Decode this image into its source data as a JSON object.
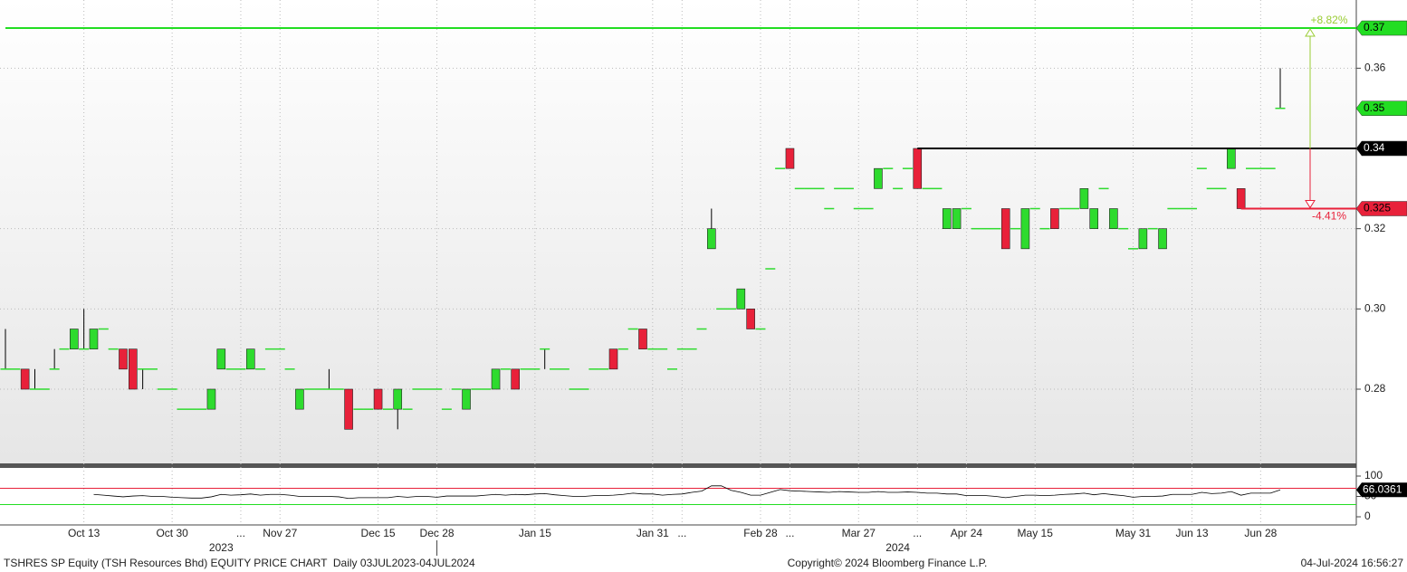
{
  "chart_data": {
    "type": "candlestick",
    "up_color": "#2edb2e",
    "down_color": "#e8213a",
    "categories": [
      null,
      null,
      null,
      null,
      null,
      null,
      null,
      null,
      "Oct 13",
      null,
      null,
      null,
      null,
      null,
      null,
      null,
      null,
      "Oct 30",
      null,
      null,
      null,
      null,
      null,
      null,
      "...",
      null,
      null,
      null,
      "Nov 27",
      null,
      null,
      null,
      null,
      null,
      null,
      null,
      null,
      null,
      "Dec 15",
      null,
      null,
      null,
      null,
      null,
      "Dec 28",
      null,
      null,
      null,
      null,
      null,
      null,
      null,
      null,
      null,
      "Jan 15",
      null,
      null,
      null,
      null,
      null,
      null,
      null,
      null,
      null,
      null,
      null,
      "Jan 31",
      null,
      null,
      "...",
      null,
      null,
      null,
      null,
      null,
      null,
      null,
      "Feb 28",
      null,
      null,
      "...",
      null,
      null,
      null,
      null,
      null,
      null,
      "Mar 27",
      null,
      null,
      null,
      null,
      null,
      "...",
      null,
      null,
      null,
      null,
      "Apr 24",
      null,
      null,
      null,
      null,
      null,
      null,
      "May 15",
      null,
      null,
      null,
      null,
      null,
      null,
      null,
      null,
      null,
      "May 31",
      null,
      null,
      null,
      null,
      null,
      "Jun 13",
      null,
      null,
      null,
      null,
      null,
      null,
      "Jun 28",
      null,
      null
    ],
    "year_labels": [
      {
        "label": "2023",
        "index": 22
      },
      {
        "label": "2024",
        "index": 91
      }
    ],
    "open": [
      0.285,
      0.285,
      0.285,
      0.28,
      0.28,
      0.285,
      0.29,
      0.29,
      0.29,
      0.29,
      0.295,
      0.29,
      0.29,
      0.29,
      0.285,
      0.285,
      0.28,
      0.28,
      0.275,
      0.275,
      0.275,
      0.275,
      0.285,
      0.285,
      0.285,
      0.285,
      0.285,
      0.29,
      0.29,
      0.285,
      0.275,
      0.28,
      0.28,
      0.28,
      0.28,
      0.28,
      0.275,
      0.275,
      0.28,
      0.275,
      0.275,
      0.275,
      0.28,
      0.28,
      0.28,
      0.275,
      0.28,
      0.275,
      0.28,
      0.28,
      0.28,
      0.285,
      0.285,
      0.285,
      0.285,
      0.29,
      0.285,
      0.285,
      0.28,
      0.28,
      0.285,
      0.285,
      0.29,
      0.29,
      0.295,
      0.295,
      0.29,
      0.29,
      0.285,
      0.29,
      0.29,
      0.295,
      0.315,
      0.3,
      0.3,
      0.3,
      0.3,
      0.295,
      0.31,
      0.335,
      0.34,
      0.33,
      0.33,
      0.33,
      0.325,
      0.33,
      0.33,
      0.325,
      0.325,
      0.33,
      0.335,
      0.33,
      0.335,
      0.34,
      0.33,
      0.33,
      0.32,
      0.32,
      0.325,
      0.32,
      0.32,
      0.32,
      0.325,
      0.32,
      0.315,
      0.325,
      0.32,
      0.325,
      0.325,
      0.325,
      0.325,
      0.32,
      0.33,
      0.32,
      0.32,
      0.315,
      0.315,
      0.32,
      0.315,
      0.325,
      0.325,
      0.325,
      0.335,
      0.33,
      0.33,
      0.335,
      0.33,
      0.335,
      0.335,
      0.335,
      0.35
    ],
    "high": [
      0.295,
      0.285,
      0.285,
      0.285,
      0.28,
      0.29,
      0.29,
      0.295,
      0.3,
      0.295,
      0.295,
      0.29,
      0.29,
      0.29,
      0.285,
      0.285,
      0.28,
      0.28,
      0.275,
      0.275,
      0.275,
      0.28,
      0.29,
      0.285,
      0.285,
      0.29,
      0.285,
      0.29,
      0.29,
      0.285,
      0.28,
      0.28,
      0.28,
      0.285,
      0.28,
      0.28,
      0.275,
      0.275,
      0.28,
      0.275,
      0.28,
      0.275,
      0.28,
      0.28,
      0.28,
      0.275,
      0.28,
      0.28,
      0.28,
      0.28,
      0.285,
      0.285,
      0.285,
      0.285,
      0.285,
      0.29,
      0.285,
      0.285,
      0.28,
      0.28,
      0.285,
      0.285,
      0.29,
      0.29,
      0.295,
      0.295,
      0.29,
      0.29,
      0.285,
      0.29,
      0.29,
      0.295,
      0.325,
      0.3,
      0.3,
      0.305,
      0.3,
      0.295,
      0.31,
      0.335,
      0.34,
      0.33,
      0.33,
      0.33,
      0.325,
      0.33,
      0.33,
      0.325,
      0.325,
      0.335,
      0.335,
      0.33,
      0.335,
      0.34,
      0.33,
      0.33,
      0.325,
      0.325,
      0.325,
      0.32,
      0.32,
      0.32,
      0.325,
      0.32,
      0.325,
      0.325,
      0.32,
      0.325,
      0.325,
      0.325,
      0.33,
      0.325,
      0.33,
      0.325,
      0.32,
      0.315,
      0.32,
      0.32,
      0.32,
      0.325,
      0.325,
      0.325,
      0.335,
      0.33,
      0.33,
      0.34,
      0.33,
      0.335,
      0.335,
      0.335,
      0.36
    ],
    "low": [
      0.285,
      0.285,
      0.28,
      0.28,
      0.28,
      0.285,
      0.29,
      0.29,
      0.29,
      0.29,
      0.295,
      0.29,
      0.285,
      0.28,
      0.28,
      0.285,
      0.28,
      0.28,
      0.275,
      0.275,
      0.275,
      0.275,
      0.285,
      0.285,
      0.285,
      0.285,
      0.285,
      0.29,
      0.29,
      0.285,
      0.275,
      0.28,
      0.28,
      0.28,
      0.28,
      0.27,
      0.275,
      0.275,
      0.275,
      0.275,
      0.27,
      0.275,
      0.28,
      0.28,
      0.28,
      0.275,
      0.28,
      0.275,
      0.28,
      0.28,
      0.28,
      0.285,
      0.28,
      0.285,
      0.285,
      0.285,
      0.285,
      0.285,
      0.28,
      0.28,
      0.285,
      0.285,
      0.285,
      0.29,
      0.295,
      0.29,
      0.29,
      0.29,
      0.285,
      0.29,
      0.29,
      0.295,
      0.315,
      0.3,
      0.3,
      0.3,
      0.295,
      0.295,
      0.31,
      0.335,
      0.335,
      0.33,
      0.33,
      0.33,
      0.325,
      0.33,
      0.33,
      0.325,
      0.325,
      0.33,
      0.335,
      0.33,
      0.335,
      0.33,
      0.33,
      0.33,
      0.32,
      0.32,
      0.325,
      0.32,
      0.32,
      0.32,
      0.315,
      0.32,
      0.315,
      0.325,
      0.32,
      0.32,
      0.325,
      0.325,
      0.325,
      0.32,
      0.33,
      0.32,
      0.32,
      0.315,
      0.315,
      0.32,
      0.315,
      0.325,
      0.325,
      0.325,
      0.335,
      0.33,
      0.33,
      0.335,
      0.325,
      0.335,
      0.335,
      0.335,
      0.35
    ],
    "close": [
      0.285,
      0.285,
      0.28,
      0.28,
      0.28,
      0.285,
      0.29,
      0.295,
      0.29,
      0.295,
      0.295,
      0.29,
      0.285,
      0.28,
      0.285,
      0.285,
      0.28,
      0.28,
      0.275,
      0.275,
      0.275,
      0.28,
      0.29,
      0.285,
      0.285,
      0.29,
      0.285,
      0.29,
      0.29,
      0.285,
      0.28,
      0.28,
      0.28,
      0.28,
      0.28,
      0.27,
      0.275,
      0.275,
      0.275,
      0.275,
      0.28,
      0.275,
      0.28,
      0.28,
      0.28,
      0.275,
      0.28,
      0.28,
      0.28,
      0.28,
      0.285,
      0.285,
      0.28,
      0.285,
      0.285,
      0.29,
      0.285,
      0.285,
      0.28,
      0.28,
      0.285,
      0.285,
      0.285,
      0.29,
      0.295,
      0.29,
      0.29,
      0.29,
      0.285,
      0.29,
      0.29,
      0.295,
      0.32,
      0.3,
      0.3,
      0.305,
      0.295,
      0.295,
      0.31,
      0.335,
      0.335,
      0.33,
      0.33,
      0.33,
      0.325,
      0.33,
      0.33,
      0.325,
      0.325,
      0.335,
      0.335,
      0.33,
      0.335,
      0.33,
      0.33,
      0.33,
      0.325,
      0.325,
      0.325,
      0.32,
      0.32,
      0.32,
      0.315,
      0.32,
      0.325,
      0.325,
      0.32,
      0.32,
      0.325,
      0.325,
      0.33,
      0.325,
      0.33,
      0.325,
      0.32,
      0.315,
      0.32,
      0.32,
      0.32,
      0.325,
      0.325,
      0.325,
      0.335,
      0.33,
      0.33,
      0.34,
      0.325,
      0.335,
      0.335,
      0.335,
      0.35
    ],
    "ylim": [
      0.2615,
      0.377
    ],
    "yticks": [
      0.28,
      {
        "value": 0.3,
        "label": "0.30"
      },
      0.32,
      0.36
    ],
    "grid": true,
    "levels": [
      {
        "value": 0.37,
        "color": "#22dd22",
        "from": 0
      },
      {
        "value": 0.34,
        "color": "#000000",
        "from": 93
      },
      {
        "value": 0.325,
        "color": "#e8213a",
        "from": 126
      }
    ],
    "last_price": {
      "value": 0.35,
      "color": "#22dd22"
    },
    "change_up": {
      "label": "+8.82%",
      "color": "#99cc33"
    },
    "change_down": {
      "label": "-4.41%",
      "color": "#e8213a"
    },
    "rsi": {
      "ylim": [
        -20,
        120
      ],
      "yticks": [
        0,
        50,
        100
      ],
      "upper": 70,
      "lower": 30,
      "upper_color": "#e8213a",
      "lower_color": "#22dd22",
      "color": "#000000",
      "values": [
        null,
        null,
        null,
        null,
        null,
        null,
        null,
        null,
        null,
        55,
        53,
        51,
        49,
        51,
        52,
        50,
        50,
        48,
        47,
        46,
        46,
        49,
        55,
        53,
        54,
        56,
        53,
        55,
        55,
        53,
        50,
        50,
        50,
        50,
        49,
        45,
        47,
        47,
        47,
        47,
        50,
        48,
        50,
        50,
        48,
        51,
        51,
        51,
        51,
        53,
        55,
        53,
        55,
        54,
        56,
        57,
        54,
        52,
        50,
        50,
        52,
        52,
        53,
        55,
        58,
        56,
        56,
        53,
        55,
        56,
        60,
        63,
        76,
        76,
        65,
        60,
        53,
        53,
        60,
        67,
        64,
        63,
        62,
        61,
        60,
        62,
        61,
        60,
        60,
        62,
        60,
        60,
        61,
        60,
        58,
        58,
        56,
        56,
        52,
        52,
        52,
        50,
        47,
        50,
        53,
        53,
        52,
        53,
        55,
        56,
        58,
        54,
        57,
        54,
        52,
        48,
        50,
        50,
        51,
        55,
        55,
        55,
        60,
        57,
        58,
        62,
        53,
        58,
        58,
        58,
        66.0361
      ]
    },
    "footer": {
      "left": "TSHRES SP Equity (TSH Resources Bhd) EQUITY PRICE CHART  Daily 03JUL2023-04JUL2024",
      "center": "Copyright© 2024 Bloomberg Finance L.P.",
      "right": "04-Jul-2024 16:56:27"
    }
  }
}
